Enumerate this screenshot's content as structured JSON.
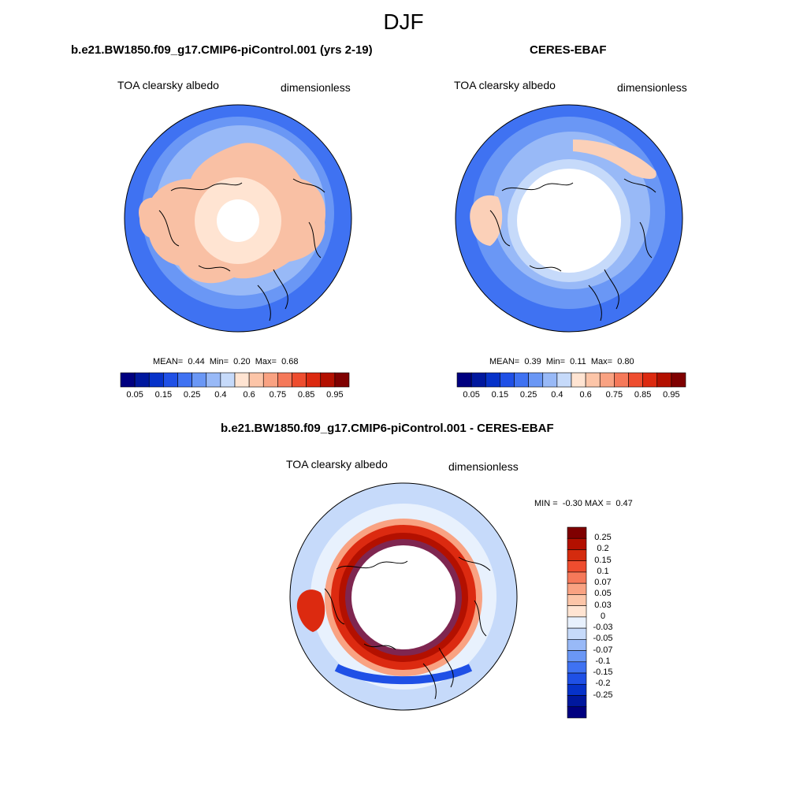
{
  "title": "DJF",
  "panels": [
    {
      "title": "b.e21.BW1850.f09_g17.CMIP6-piControl.001 (yrs 2-19)",
      "variable": "TOA clearsky albedo",
      "units": "dimensionless",
      "stats": {
        "mean_label": "MEAN=",
        "mean": "0.44",
        "min_label": "Min=",
        "min": "0.20",
        "max_label": "Max=",
        "max": "0.68"
      },
      "hole_fraction": 0.18
    },
    {
      "title": "CERES-EBAF",
      "variable": "TOA clearsky albedo",
      "units": "dimensionless",
      "stats": {
        "mean_label": "MEAN=",
        "mean": "0.39",
        "min_label": "Min=",
        "min": "0.11",
        "max_label": "Max=",
        "max": "0.80"
      },
      "hole_fraction": 0.38
    },
    {
      "title": "b.e21.BW1850.f09_g17.CMIP6-piControl.001 - CERES-EBAF",
      "variable": "TOA clearsky albedo",
      "units": "dimensionless",
      "stats": {
        "min_label": "MIN =",
        "min": "-0.30",
        "max_label": "MAX =",
        "max": "0.47"
      },
      "hole_fraction": 0.38
    }
  ],
  "colorbar_abs": {
    "colors": [
      "#000080",
      "#00189e",
      "#0632c9",
      "#1f50e6",
      "#3f72f2",
      "#6a97f5",
      "#98b9f7",
      "#c6dafa",
      "#ffe4d2",
      "#fcc5a8",
      "#f9a282",
      "#f5795a",
      "#ee4d2f",
      "#dc2a10",
      "#b31000",
      "#7f0000"
    ],
    "tick_labels": [
      "0.05",
      "0.15",
      "0.25",
      "0.4",
      "0.6",
      "0.75",
      "0.85",
      "0.95"
    ]
  },
  "colorbar_diff": {
    "colors": [
      "#7f0000",
      "#b31000",
      "#d42b0e",
      "#ee4d2f",
      "#f5795a",
      "#f9a282",
      "#fcc5a8",
      "#ffe4d2",
      "#e8f1fd",
      "#c6dafa",
      "#98b9f7",
      "#6a97f5",
      "#3f72f2",
      "#1f50e6",
      "#0632c9",
      "#00189e",
      "#000080"
    ],
    "tick_labels": [
      "0.25",
      "0.2",
      "0.15",
      "0.1",
      "0.07",
      "0.05",
      "0.03",
      "0",
      "-0.03",
      "-0.05",
      "-0.07",
      "-0.1",
      "-0.15",
      "-0.2",
      "-0.25"
    ]
  },
  "map_fill": {
    "panel1": {
      "ocean": "#3f72f2",
      "mid": "#98b9f7",
      "inner": "#c6dafa",
      "land": "#f9c0a4",
      "core": "#ffe4d2"
    },
    "panel2": {
      "ocean": "#3f72f2",
      "mid": "#6a97f5",
      "inner": "#98b9f7",
      "land": "#fbd0b8",
      "core": "#c6dafa"
    },
    "panel3": {
      "ocean": "#c6dafa",
      "mid": "#e8f1fd",
      "band": "#dc2a10",
      "band2": "#b31000",
      "ring": "#f9a282",
      "neg": "#1f50e6"
    }
  }
}
